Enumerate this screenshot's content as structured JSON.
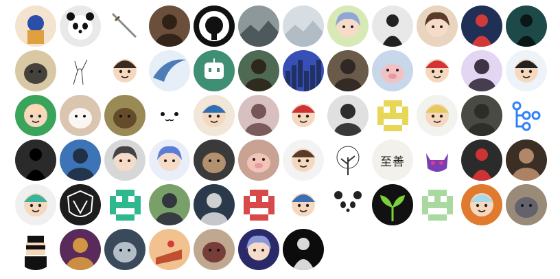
{
  "avatars": [
    {
      "name": "avatar-pixel-art-portrait-icon",
      "bg": "#f4e3cf",
      "accent": "#2b4fa8",
      "style": "figure"
    },
    {
      "name": "avatar-panda-icon",
      "bg": "#e9e9e9",
      "accent": "#111111",
      "style": "panda"
    },
    {
      "name": "avatar-sword-icon",
      "bg": "#ffffff",
      "accent": "#888888",
      "style": "sword"
    },
    {
      "name": "avatar-man-with-glasses-photo-icon",
      "bg": "#6b4f3a",
      "accent": "#2a1c14",
      "style": "person"
    },
    {
      "name": "avatar-github-octocat-icon",
      "bg": "#111111",
      "accent": "#ffffff",
      "style": "octocat"
    },
    {
      "name": "avatar-misty-mountain-photo-icon",
      "bg": "#8c989a",
      "accent": "#3f4a4c",
      "style": "landscape"
    },
    {
      "name": "avatar-foggy-sky-photo-icon",
      "bg": "#d6dde3",
      "accent": "#a9b4bd",
      "style": "landscape"
    },
    {
      "name": "avatar-anime-girl-icon",
      "bg": "#d7e9b5",
      "accent": "#8fa7d8",
      "style": "anime"
    },
    {
      "name": "avatar-hooded-silhouette-icon",
      "bg": "#e8e8e8",
      "accent": "#222222",
      "style": "silhouette"
    },
    {
      "name": "avatar-anime-boy-brown-hair-icon",
      "bg": "#e9d4c0",
      "accent": "#5a3a28",
      "style": "anime"
    },
    {
      "name": "avatar-jumping-man-night-icon",
      "bg": "#1f2f56",
      "accent": "#d23a3a",
      "style": "silhouette"
    },
    {
      "name": "avatar-man-under-aurora-icon",
      "bg": "#1d4a48",
      "accent": "#0b1717",
      "style": "silhouette"
    },
    {
      "name": "avatar-seal-closeup-photo-icon",
      "bg": "#d9c8a4",
      "accent": "#2a2a2a",
      "style": "animal"
    },
    {
      "name": "avatar-line-sketch-icon",
      "bg": "#ffffff",
      "accent": "#333333",
      "style": "sketch"
    },
    {
      "name": "avatar-cartoon-boy-glasses-icon",
      "bg": "#ffffff",
      "accent": "#3a2a20",
      "style": "cartoon"
    },
    {
      "name": "avatar-blue-wave-logo-icon",
      "bg": "#e6eef7",
      "accent": "#4f7cb5",
      "style": "wave"
    },
    {
      "name": "avatar-robot-chat-icon",
      "bg": "#3e8f74",
      "accent": "#ffffff",
      "style": "robot"
    },
    {
      "name": "avatar-smiling-man-photo-icon",
      "bg": "#4e6a53",
      "accent": "#2b2016",
      "style": "person"
    },
    {
      "name": "avatar-night-city-icon",
      "bg": "#2a3fa8",
      "accent": "#8ab6ff",
      "style": "city"
    },
    {
      "name": "avatar-hooded-man-photo-icon",
      "bg": "#6a5a4a",
      "accent": "#2a2220",
      "style": "person"
    },
    {
      "name": "avatar-pig-photo-icon",
      "bg": "#c7d8ea",
      "accent": "#f2c1c4",
      "style": "pig"
    },
    {
      "name": "avatar-watermelon-penguin-icon",
      "bg": "#ffffff",
      "accent": "#d33333",
      "style": "cartoon"
    },
    {
      "name": "avatar-boy-portrait-icon",
      "bg": "#e3d6f2",
      "accent": "#2a2233",
      "style": "person"
    },
    {
      "name": "avatar-cartoon-man-glasses-icon",
      "bg": "#eef3f9",
      "accent": "#222222",
      "style": "cartoon"
    },
    {
      "name": "avatar-crayon-shin-chan-icon",
      "bg": "#3aa55a",
      "accent": "#ffd9b3",
      "style": "cartoon"
    },
    {
      "name": "avatar-samoyed-dog-photo-icon",
      "bg": "#d9c5b0",
      "accent": "#ffffff",
      "style": "animal"
    },
    {
      "name": "avatar-dog-on-grass-photo-icon",
      "bg": "#9a8a55",
      "accent": "#5a3f22",
      "style": "animal"
    },
    {
      "name": "avatar-cute-face-emoticon-icon",
      "bg": "#ffffff",
      "accent": "#111111",
      "style": "face"
    },
    {
      "name": "avatar-south-park-character-icon",
      "bg": "#f1e7d8",
      "accent": "#2d6fb5",
      "style": "cartoon"
    },
    {
      "name": "avatar-girl-cat-hat-photo-icon",
      "bg": "#d9c0c0",
      "accent": "#6a4a4a",
      "style": "person"
    },
    {
      "name": "avatar-chef-cartoon-icon",
      "bg": "#ffffff",
      "accent": "#cc3333",
      "style": "cartoon"
    },
    {
      "name": "avatar-man-smiling-bw-photo-icon",
      "bg": "#e0e0e0",
      "accent": "#1a1a1a",
      "style": "person"
    },
    {
      "name": "avatar-yellow-pixel-identicon-icon",
      "bg": "#ffffff",
      "accent": "#e8d657",
      "style": "identicon"
    },
    {
      "name": "avatar-togepi-egg-icon",
      "bg": "#f2f2ee",
      "accent": "#e7c85a",
      "style": "cartoon"
    },
    {
      "name": "avatar-person-in-tree-photo-icon",
      "bg": "#4a4a44",
      "accent": "#2a2a26",
      "style": "person"
    },
    {
      "name": "avatar-github-actions-workflow-icon",
      "bg": "#ffffff",
      "accent": "#2f81f7",
      "style": "workflow"
    },
    {
      "name": "avatar-dark-silhouette-icon",
      "bg": "#2a2a2a",
      "accent": "#000000",
      "style": "silhouette"
    },
    {
      "name": "avatar-man-by-sea-photo-icon",
      "bg": "#3d74b8",
      "accent": "#1d2a3a",
      "style": "person"
    },
    {
      "name": "avatar-white-haired-anime-icon",
      "bg": "#d7d7d7",
      "accent": "#444444",
      "style": "anime"
    },
    {
      "name": "avatar-white-haired-anime-girl-icon",
      "bg": "#e9eef9",
      "accent": "#5a7ed8",
      "style": "anime"
    },
    {
      "name": "avatar-raccoon-cat-illustration-icon",
      "bg": "#3a3a3a",
      "accent": "#c9a07a",
      "style": "animal"
    },
    {
      "name": "avatar-pig-toy-photo-icon",
      "bg": "#c9a294",
      "accent": "#f2c4b8",
      "style": "pig"
    },
    {
      "name": "avatar-cartoon-boy-hat-icon",
      "bg": "#f3f3f3",
      "accent": "#5a3a2a",
      "style": "cartoon"
    },
    {
      "name": "avatar-tree-ink-drawing-icon",
      "bg": "#ffffff",
      "accent": "#333333",
      "style": "tree"
    },
    {
      "name": "avatar-chinese-text-icon",
      "bg": "#f3f1ec",
      "accent": "#222222",
      "style": "text",
      "label": "至善"
    },
    {
      "name": "avatar-purple-cat-icon",
      "bg": "#ffffff",
      "accent": "#7a3fb5",
      "style": "cat"
    },
    {
      "name": "avatar-gas-mask-figure-icon",
      "bg": "#2b2b2b",
      "accent": "#cc3333",
      "style": "silhouette"
    },
    {
      "name": "avatar-woman-portrait-dark-icon",
      "bg": "#3a2e25",
      "accent": "#c09070",
      "style": "person"
    },
    {
      "name": "avatar-green-cartoon-kid-icon",
      "bg": "#f0f0f0",
      "accent": "#3bb39c",
      "style": "cartoon"
    },
    {
      "name": "avatar-survey-corps-emblem-icon",
      "bg": "#1d1d1d",
      "accent": "#ffffff",
      "style": "emblem"
    },
    {
      "name": "avatar-green-pixel-identicon-icon",
      "bg": "#ffffff",
      "accent": "#2fb890",
      "style": "identicon"
    },
    {
      "name": "avatar-man-in-suit-photo-icon",
      "bg": "#7aa06a",
      "accent": "#2a2a3a",
      "style": "person"
    },
    {
      "name": "avatar-man-with-text-backdrop-icon",
      "bg": "#2a3a4a",
      "accent": "#e0e0e0",
      "style": "person"
    },
    {
      "name": "avatar-red-pixel-identicon-icon",
      "bg": "#ffffff",
      "accent": "#d84a4a",
      "style": "identicon"
    },
    {
      "name": "avatar-zelda-link-archer-icon",
      "bg": "#ffffff",
      "accent": "#3a6fb5",
      "style": "cartoon"
    },
    {
      "name": "avatar-panda-cartoon-icon",
      "bg": "#ffffff",
      "accent": "#222222",
      "style": "panda"
    },
    {
      "name": "avatar-green-sprout-icon",
      "bg": "#111111",
      "accent": "#7ad13a",
      "style": "sprout"
    },
    {
      "name": "avatar-light-green-identicon-icon",
      "bg": "#ffffff",
      "accent": "#a9d9a0",
      "style": "identicon"
    },
    {
      "name": "avatar-rick-cartoon-icon",
      "bg": "#e07a2e",
      "accent": "#a9d9e8",
      "style": "cartoon"
    },
    {
      "name": "avatar-cat-cafe-photo-icon",
      "bg": "#9a8a78",
      "accent": "#5a5a6a",
      "style": "animal"
    },
    {
      "name": "avatar-pixel-sunglasses-man-icon",
      "bg": "#ffffff",
      "accent": "#111111",
      "style": "pixel"
    },
    {
      "name": "avatar-guitar-player-photo-icon",
      "bg": "#5a2a5a",
      "accent": "#e0a040",
      "style": "person"
    },
    {
      "name": "avatar-werewolf-mask-icon",
      "bg": "#3a4a5a",
      "accent": "#c8d2dc",
      "style": "animal"
    },
    {
      "name": "avatar-cake-slice-icon",
      "bg": "#f2c190",
      "accent": "#c05030",
      "style": "cake"
    },
    {
      "name": "avatar-cat-wrapped-photo-icon",
      "bg": "#c0a890",
      "accent": "#6a2a2a",
      "style": "animal"
    },
    {
      "name": "avatar-blue-haired-anime-icon",
      "bg": "#2a2a6a",
      "accent": "#8a9ad8",
      "style": "anime"
    },
    {
      "name": "avatar-figure-in-darkness-photo-icon",
      "bg": "#0c0c0c",
      "accent": "#d8d8d8",
      "style": "silhouette"
    }
  ]
}
